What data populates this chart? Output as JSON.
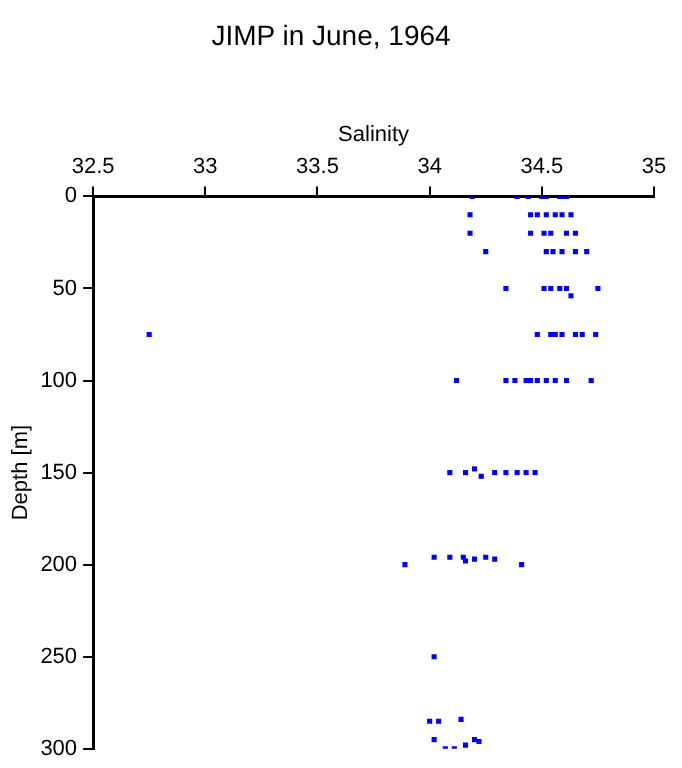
{
  "chart_data": {
    "type": "scatter",
    "title": "JIMP in June, 1964",
    "xlabel": "Salinity",
    "ylabel": "Depth [m]",
    "series": [
      {
        "color": "#0000ff",
        "x": [
          34.19,
          34.39,
          34.44,
          34.5,
          34.52,
          34.58,
          34.6,
          34.61,
          34.18,
          34.45,
          34.48,
          34.52,
          34.56,
          34.59,
          34.63,
          34.18,
          34.45,
          34.51,
          34.54,
          34.61,
          34.65,
          34.25,
          34.52,
          34.55,
          34.59,
          34.65,
          34.7,
          34.34,
          34.51,
          34.54,
          34.58,
          34.61,
          34.75,
          34.63,
          32.75,
          34.48,
          34.54,
          34.56,
          34.59,
          34.65,
          34.68,
          34.74,
          34.12,
          34.34,
          34.38,
          34.43,
          34.45,
          34.48,
          34.52,
          34.56,
          34.61,
          34.72,
          34.09,
          34.16,
          34.2,
          34.23,
          34.29,
          34.34,
          34.39,
          34.43,
          34.47,
          33.89,
          34.02,
          34.09,
          34.15,
          34.16,
          34.2,
          34.25,
          34.29,
          34.41,
          34.02,
          34.0,
          34.04,
          34.14,
          34.02,
          34.2,
          34.22,
          34.07,
          34.16,
          34.11
        ],
        "values": [
          0,
          0,
          0,
          0,
          0,
          0,
          0,
          0,
          10,
          10,
          10,
          10,
          10,
          10,
          10,
          20,
          20,
          20,
          20,
          20,
          20,
          30,
          30,
          30,
          30,
          30,
          30,
          50,
          50,
          50,
          50,
          50,
          50,
          54,
          75,
          75,
          75,
          75,
          75,
          75,
          75,
          75,
          100,
          100,
          100,
          100,
          100,
          100,
          100,
          100,
          100,
          100,
          150,
          150,
          148,
          152,
          150,
          150,
          150,
          150,
          150,
          200,
          196,
          196,
          196,
          198,
          197,
          196,
          197,
          200,
          250,
          285,
          285,
          284,
          295,
          295,
          296,
          300,
          298,
          300
        ]
      }
    ],
    "xlim": [
      32.5,
      35
    ],
    "xticks": [
      32.5,
      33,
      33.5,
      34,
      34.5,
      35
    ],
    "ylim": [
      300,
      0
    ],
    "yticks": [
      0,
      50,
      100,
      150,
      200,
      250,
      300
    ],
    "grid": false,
    "legend": false,
    "marker": "square"
  }
}
